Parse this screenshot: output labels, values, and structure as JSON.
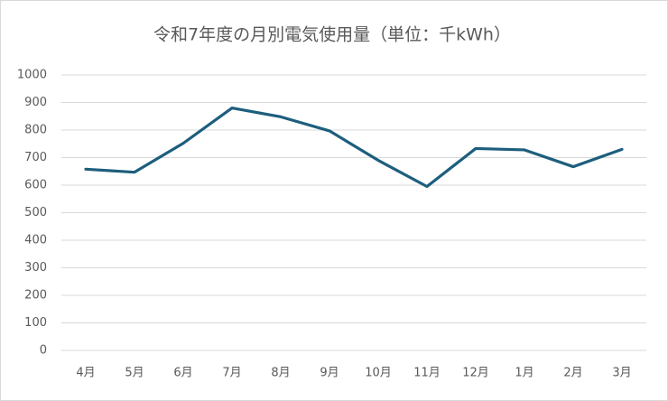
{
  "chart_data": {
    "type": "line",
    "title": "令和7年度の月別電気使用量（単位：千kWh）",
    "categories": [
      "4月",
      "5月",
      "6月",
      "7月",
      "8月",
      "9月",
      "10月",
      "11月",
      "12月",
      "1月",
      "2月",
      "3月"
    ],
    "values": [
      658,
      647,
      752,
      880,
      848,
      797,
      690,
      595,
      733,
      728,
      667,
      730
    ],
    "color": "#1d5e7d",
    "ylim": [
      0,
      1000
    ],
    "yticks": [
      0,
      100,
      200,
      300,
      400,
      500,
      600,
      700,
      800,
      900,
      1000
    ],
    "grid": true
  }
}
